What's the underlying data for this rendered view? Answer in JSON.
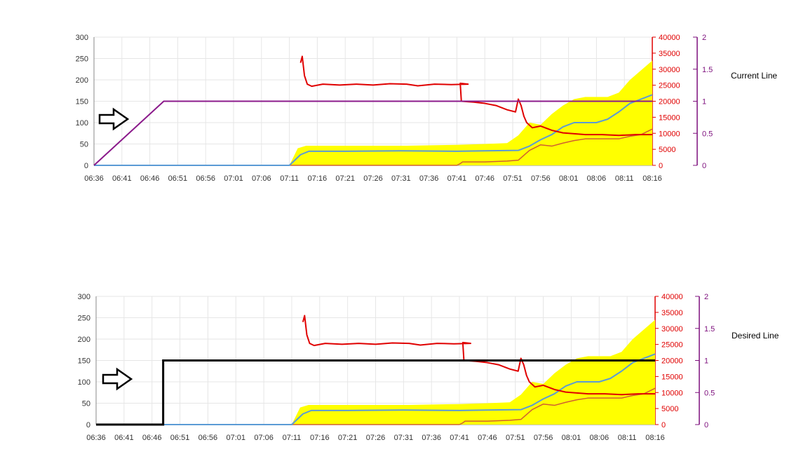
{
  "chart_data": [
    {
      "type": "line",
      "label": "Current Line",
      "x_ticks": [
        "06:36",
        "06:41",
        "06:46",
        "06:51",
        "06:56",
        "07:01",
        "07:06",
        "07:11",
        "07:16",
        "07:21",
        "07:26",
        "07:31",
        "07:36",
        "07:41",
        "07:46",
        "07:51",
        "07:56",
        "08:01",
        "08:06",
        "08:11",
        "08:16"
      ],
      "y_left_ticks": [
        "0",
        "50",
        "100",
        "150",
        "200",
        "250",
        "300"
      ],
      "y_right1_ticks": [
        "0",
        "5000",
        "10000",
        "15000",
        "20000",
        "25000",
        "30000",
        "35000",
        "40000"
      ],
      "y_right2_ticks": [
        "0",
        "0.5",
        "1",
        "1.5",
        "2"
      ],
      "ylim_left": [
        0,
        300
      ],
      "ylim_right1": [
        0,
        40000
      ],
      "ylim_right2": [
        0,
        2
      ],
      "grid": true,
      "step_series": {
        "style": "ramp",
        "color": "#8b1a8b",
        "axis": "right2",
        "points": [
          [
            0,
            0
          ],
          [
            12.5,
            1
          ],
          [
            100,
            1
          ]
        ]
      }
    },
    {
      "type": "line",
      "label": "Desired Line",
      "x_ticks": [
        "06:36",
        "06:41",
        "06:46",
        "06:51",
        "06:56",
        "07:01",
        "07:06",
        "07:11",
        "07:16",
        "07:21",
        "07:26",
        "07:31",
        "07:36",
        "07:41",
        "07:46",
        "07:51",
        "07:56",
        "08:01",
        "08:06",
        "08:11",
        "08:16"
      ],
      "y_left_ticks": [
        "0",
        "50",
        "100",
        "150",
        "200",
        "250",
        "300"
      ],
      "y_right1_ticks": [
        "0",
        "5000",
        "10000",
        "15000",
        "20000",
        "25000",
        "30000",
        "35000",
        "40000"
      ],
      "y_right2_ticks": [
        "0",
        "0.5",
        "1",
        "1.5",
        "2"
      ],
      "ylim_left": [
        0,
        300
      ],
      "ylim_right1": [
        0,
        40000
      ],
      "ylim_right2": [
        0,
        2
      ],
      "grid": true,
      "step_series": {
        "style": "step",
        "color": "#000000",
        "axis": "right2",
        "points": [
          [
            0,
            0
          ],
          [
            12,
            0
          ],
          [
            12,
            1
          ],
          [
            100,
            1
          ]
        ]
      }
    }
  ],
  "series_shapes": {
    "yellow_area": {
      "color": "#ffff00",
      "points": [
        [
          35,
          0
        ],
        [
          36.5,
          40
        ],
        [
          38,
          46
        ],
        [
          56,
          46
        ],
        [
          65,
          48
        ],
        [
          70,
          50
        ],
        [
          74,
          52
        ],
        [
          76,
          70
        ],
        [
          78,
          100
        ],
        [
          80,
          95
        ],
        [
          82,
          120
        ],
        [
          84,
          140
        ],
        [
          86,
          155
        ],
        [
          88,
          160
        ],
        [
          92,
          160
        ],
        [
          94,
          170
        ],
        [
          96,
          200
        ],
        [
          100,
          245
        ]
      ]
    },
    "red_line": {
      "color": "#e00000",
      "points": [
        [
          37,
          240
        ],
        [
          37.3,
          255
        ],
        [
          37.7,
          210
        ],
        [
          38.2,
          190
        ],
        [
          39,
          185
        ],
        [
          41,
          190
        ],
        [
          44,
          188
        ],
        [
          47,
          190
        ],
        [
          50,
          188
        ],
        [
          53,
          191
        ],
        [
          56,
          190
        ],
        [
          58,
          186
        ],
        [
          61,
          190
        ],
        [
          64,
          189
        ],
        [
          67,
          190
        ],
        [
          65.6,
          192
        ],
        [
          65.8,
          150
        ],
        [
          68,
          148
        ],
        [
          70,
          145
        ],
        [
          72,
          140
        ],
        [
          74,
          130
        ],
        [
          75.5,
          125
        ],
        [
          76,
          155
        ],
        [
          76.5,
          140
        ],
        [
          77,
          115
        ],
        [
          77.5,
          100
        ],
        [
          78.5,
          88
        ],
        [
          80,
          92
        ],
        [
          82,
          82
        ],
        [
          84,
          76
        ],
        [
          86,
          74
        ],
        [
          88,
          72
        ],
        [
          91,
          72
        ],
        [
          94,
          70
        ],
        [
          97,
          72
        ],
        [
          100,
          72
        ]
      ]
    },
    "blue_line": {
      "color": "#5b9bd5",
      "points": [
        [
          0,
          0
        ],
        [
          35,
          0
        ],
        [
          37,
          25
        ],
        [
          38.5,
          33
        ],
        [
          45,
          33
        ],
        [
          55,
          34
        ],
        [
          65,
          33
        ],
        [
          70,
          34
        ],
        [
          76,
          35
        ],
        [
          78,
          45
        ],
        [
          80,
          60
        ],
        [
          82,
          72
        ],
        [
          84,
          90
        ],
        [
          86,
          100
        ],
        [
          90,
          100
        ],
        [
          92,
          108
        ],
        [
          94,
          125
        ],
        [
          96,
          145
        ],
        [
          98,
          155
        ],
        [
          100,
          165
        ]
      ]
    },
    "orange_line": {
      "color": "#d06030",
      "points": [
        [
          0,
          0
        ],
        [
          65,
          0
        ],
        [
          65.6,
          4
        ],
        [
          66,
          8
        ],
        [
          70,
          8
        ],
        [
          74,
          10
        ],
        [
          76,
          12
        ],
        [
          78,
          35
        ],
        [
          80,
          48
        ],
        [
          82,
          45
        ],
        [
          84,
          52
        ],
        [
          86,
          58
        ],
        [
          88,
          62
        ],
        [
          92,
          62
        ],
        [
          94,
          62
        ],
        [
          96,
          68
        ],
        [
          98,
          72
        ],
        [
          100,
          85
        ]
      ]
    }
  }
}
